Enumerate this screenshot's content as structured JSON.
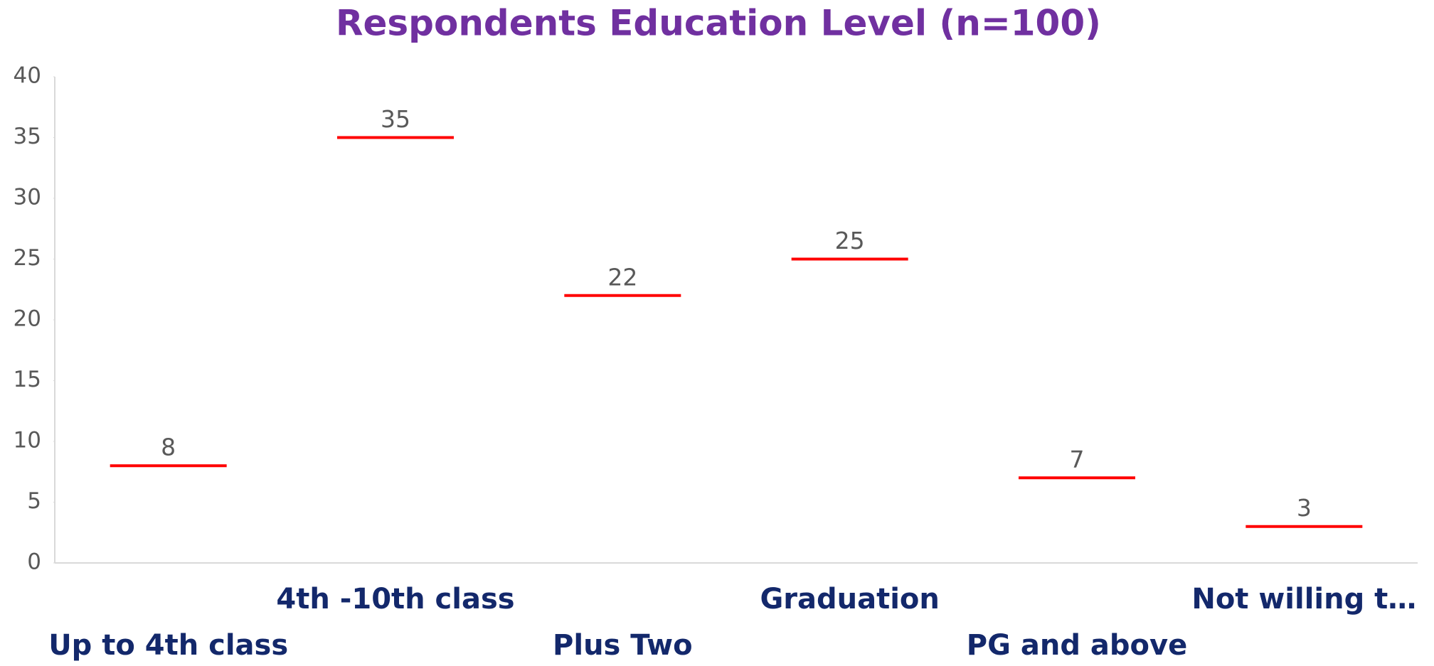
{
  "chart_data": {
    "type": "dash",
    "title": "Respondents  Education Level (n=100)",
    "categories": [
      "Up to 4th class",
      "4th -10th class",
      "Plus Two",
      "Graduation",
      "PG and above",
      "Not willing t…"
    ],
    "values": [
      8,
      35,
      22,
      25,
      7,
      3
    ],
    "color": "#ff0000",
    "ylim": [
      0,
      40
    ],
    "yticks": [
      0,
      5,
      10,
      15,
      20,
      25,
      30,
      35,
      40
    ],
    "grid": false
  }
}
